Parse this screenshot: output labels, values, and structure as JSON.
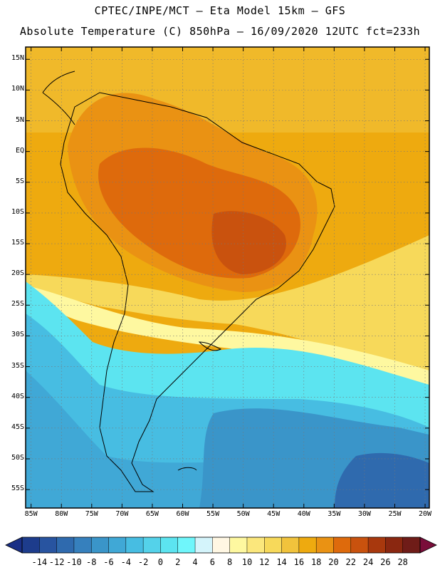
{
  "header": {
    "line1": "CPTEC/INPE/MCT –  Eta Model 15km – GFS",
    "line2": "Absolute Temperature (C) 850hPa – 16/09/2020 12UTC fct=233h"
  },
  "axes": {
    "lat_labels": [
      "15N",
      "10N",
      "5N",
      "EQ",
      "5S",
      "10S",
      "15S",
      "20S",
      "25S",
      "30S",
      "35S",
      "40S",
      "45S",
      "50S",
      "55S"
    ],
    "lat_values": [
      15,
      10,
      5,
      0,
      -5,
      -10,
      -15,
      -20,
      -25,
      -30,
      -35,
      -40,
      -45,
      -50,
      -55
    ],
    "lon_labels": [
      "85W",
      "80W",
      "75W",
      "70W",
      "65W",
      "60W",
      "55W",
      "50W",
      "45W",
      "40W",
      "35W",
      "30W",
      "25W",
      "20W"
    ],
    "lon_values": [
      -85,
      -80,
      -75,
      -70,
      -65,
      -60,
      -55,
      -50,
      -45,
      -40,
      -35,
      -30,
      -25,
      -20
    ],
    "lat_range": [
      -58,
      17
    ],
    "lon_range": [
      -85.9,
      -19.3
    ]
  },
  "colorbar": {
    "labels": [
      "-14",
      "-12",
      "-10",
      "-8",
      "-6",
      "-4",
      "-2",
      "0",
      "2",
      "4",
      "6",
      "8",
      "10",
      "12",
      "14",
      "16",
      "18",
      "20",
      "22",
      "24",
      "26",
      "28"
    ],
    "colors": [
      "#1d3c8c",
      "#2854a0",
      "#2f6aae",
      "#3680bd",
      "#3a95c9",
      "#40a8d6",
      "#47bde2",
      "#54d2ea",
      "#5ce4f0",
      "#6ff6fb",
      "#d4f4fb",
      "#fff7e3",
      "#fef8a0",
      "#fbe77c",
      "#f7d95a",
      "#f1c33c",
      "#eeaa0f",
      "#ea9213",
      "#de6a0c",
      "#c9520e",
      "#a8380d",
      "#8a2710",
      "#6f1c18"
    ],
    "left_cap": "#1a2f86",
    "right_cap": "#7a0d3a"
  }
}
